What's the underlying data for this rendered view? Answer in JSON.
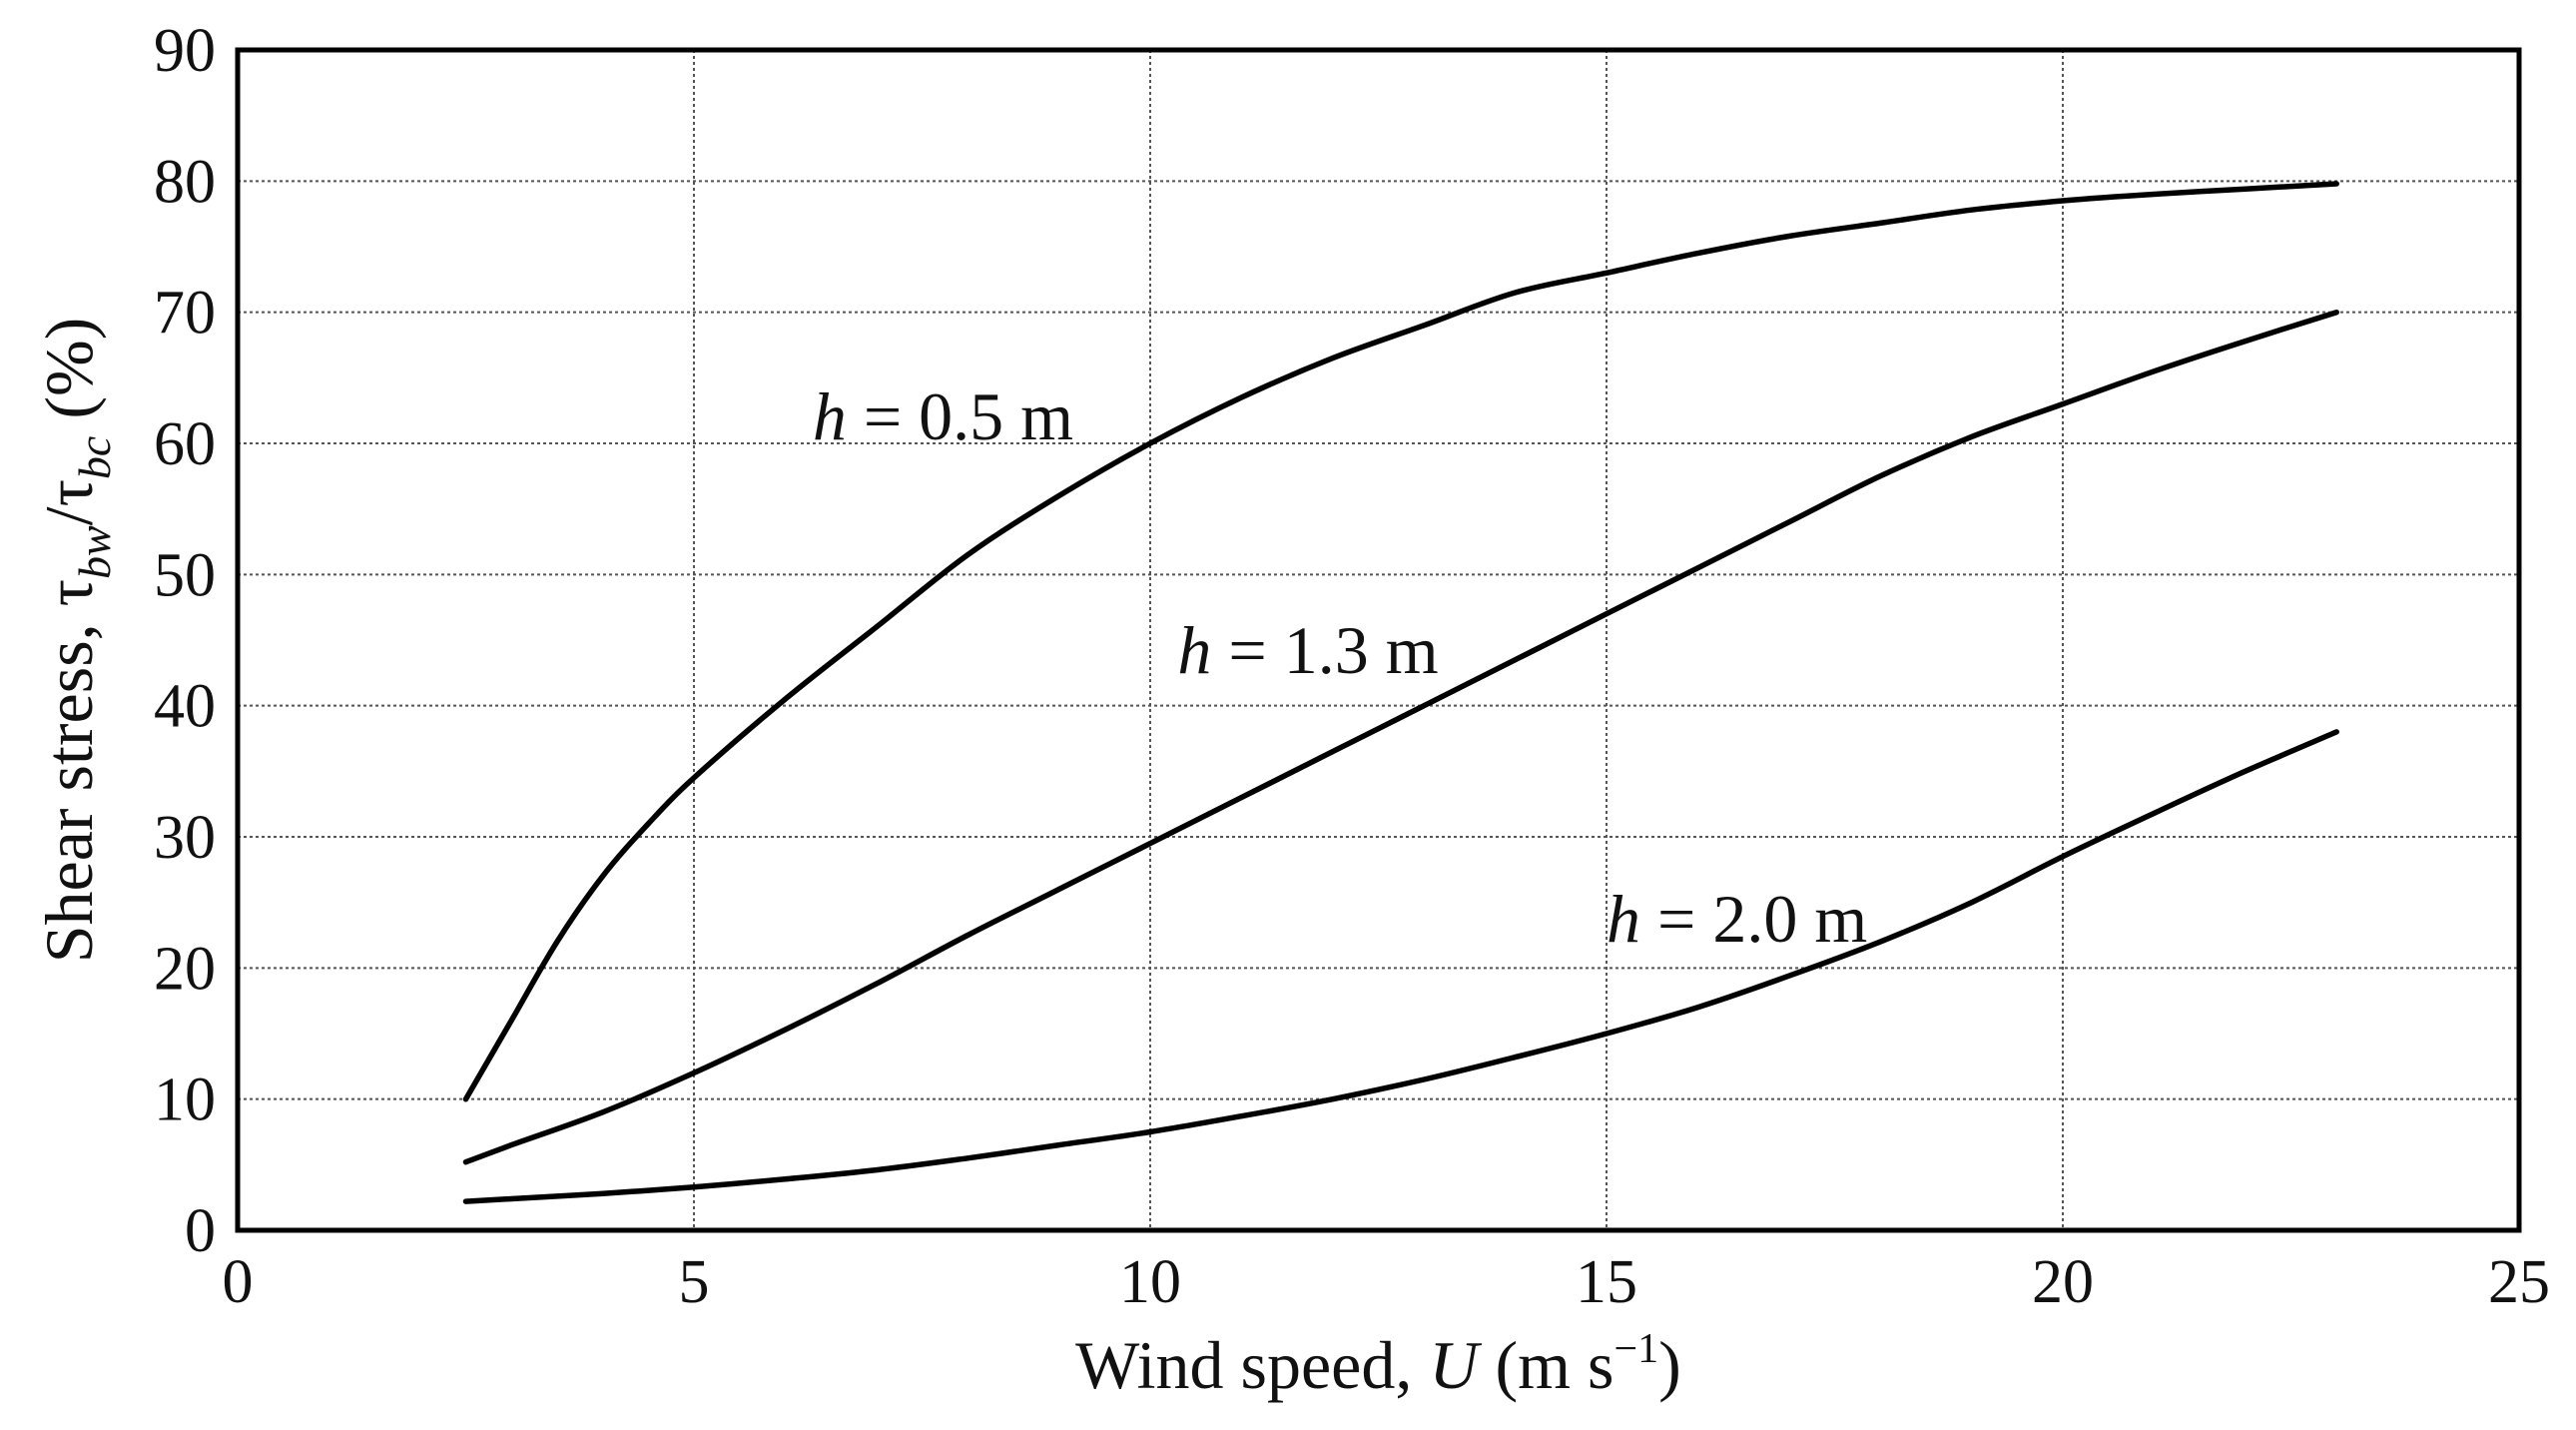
{
  "chart_data": {
    "type": "line",
    "title": "",
    "xlabel": {
      "prefix": "Wind speed, ",
      "symbol": "U",
      "units_open": " (m s",
      "units_exp": "−1",
      "units_close": ")"
    },
    "ylabel": {
      "prefix": "Shear stress, ",
      "num_tau": "τ",
      "num_sub": "bw",
      "slash": "/",
      "den_tau": "τ",
      "den_sub": "bc",
      "units": " (%)"
    },
    "xlim": [
      0,
      25
    ],
    "ylim": [
      0,
      90
    ],
    "xticks": [
      "0",
      "5",
      "10",
      "15",
      "20",
      "25"
    ],
    "yticks": [
      "0",
      "10",
      "20",
      "30",
      "40",
      "50",
      "60",
      "70",
      "80",
      "90"
    ],
    "grid": true,
    "series": [
      {
        "label": {
          "var": "h",
          "text": " = 0.5 m"
        },
        "x": [
          2.5,
          3.0,
          3.5,
          4.0,
          4.5,
          5.0,
          6.0,
          7.0,
          8.0,
          9.0,
          10.0,
          11.0,
          12.0,
          13.0,
          14.0,
          15.0,
          16.0,
          17.0,
          18.0,
          19.0,
          20.0,
          21.0,
          22.0,
          23.0
        ],
        "y": [
          10,
          16,
          22,
          27,
          31,
          34.5,
          40.5,
          46,
          51.5,
          56,
          60,
          63.5,
          66.5,
          69,
          71.5,
          73,
          74.5,
          75.8,
          76.8,
          77.8,
          78.5,
          79,
          79.4,
          79.8
        ]
      },
      {
        "label": {
          "var": "h",
          "text": " = 1.3 m"
        },
        "x": [
          2.5,
          3.0,
          4.0,
          5.0,
          6.0,
          7.0,
          8.0,
          9.0,
          10.0,
          11.0,
          12.0,
          13.0,
          14.0,
          15.0,
          16.0,
          17.0,
          18.0,
          19.0,
          20.0,
          21.0,
          22.0,
          23.0
        ],
        "y": [
          5.2,
          6.5,
          9,
          12,
          15.3,
          18.8,
          22.5,
          26,
          29.5,
          33,
          36.5,
          40,
          43.5,
          47,
          50.5,
          54,
          57.5,
          60.5,
          63,
          65.5,
          67.8,
          70
        ]
      },
      {
        "label": {
          "var": "h",
          "text": " = 2.0 m"
        },
        "x": [
          2.5,
          3.0,
          4.0,
          5.0,
          6.0,
          7.0,
          8.0,
          9.0,
          10.0,
          11.0,
          12.0,
          13.0,
          14.0,
          15.0,
          16.0,
          17.0,
          18.0,
          19.0,
          20.0,
          21.0,
          22.0,
          23.0
        ],
        "y": [
          2.2,
          2.4,
          2.8,
          3.3,
          3.9,
          4.6,
          5.5,
          6.5,
          7.5,
          8.7,
          10,
          11.5,
          13.2,
          15,
          17,
          19.4,
          22,
          25,
          28.5,
          31.8,
          35,
          38
        ]
      }
    ]
  }
}
